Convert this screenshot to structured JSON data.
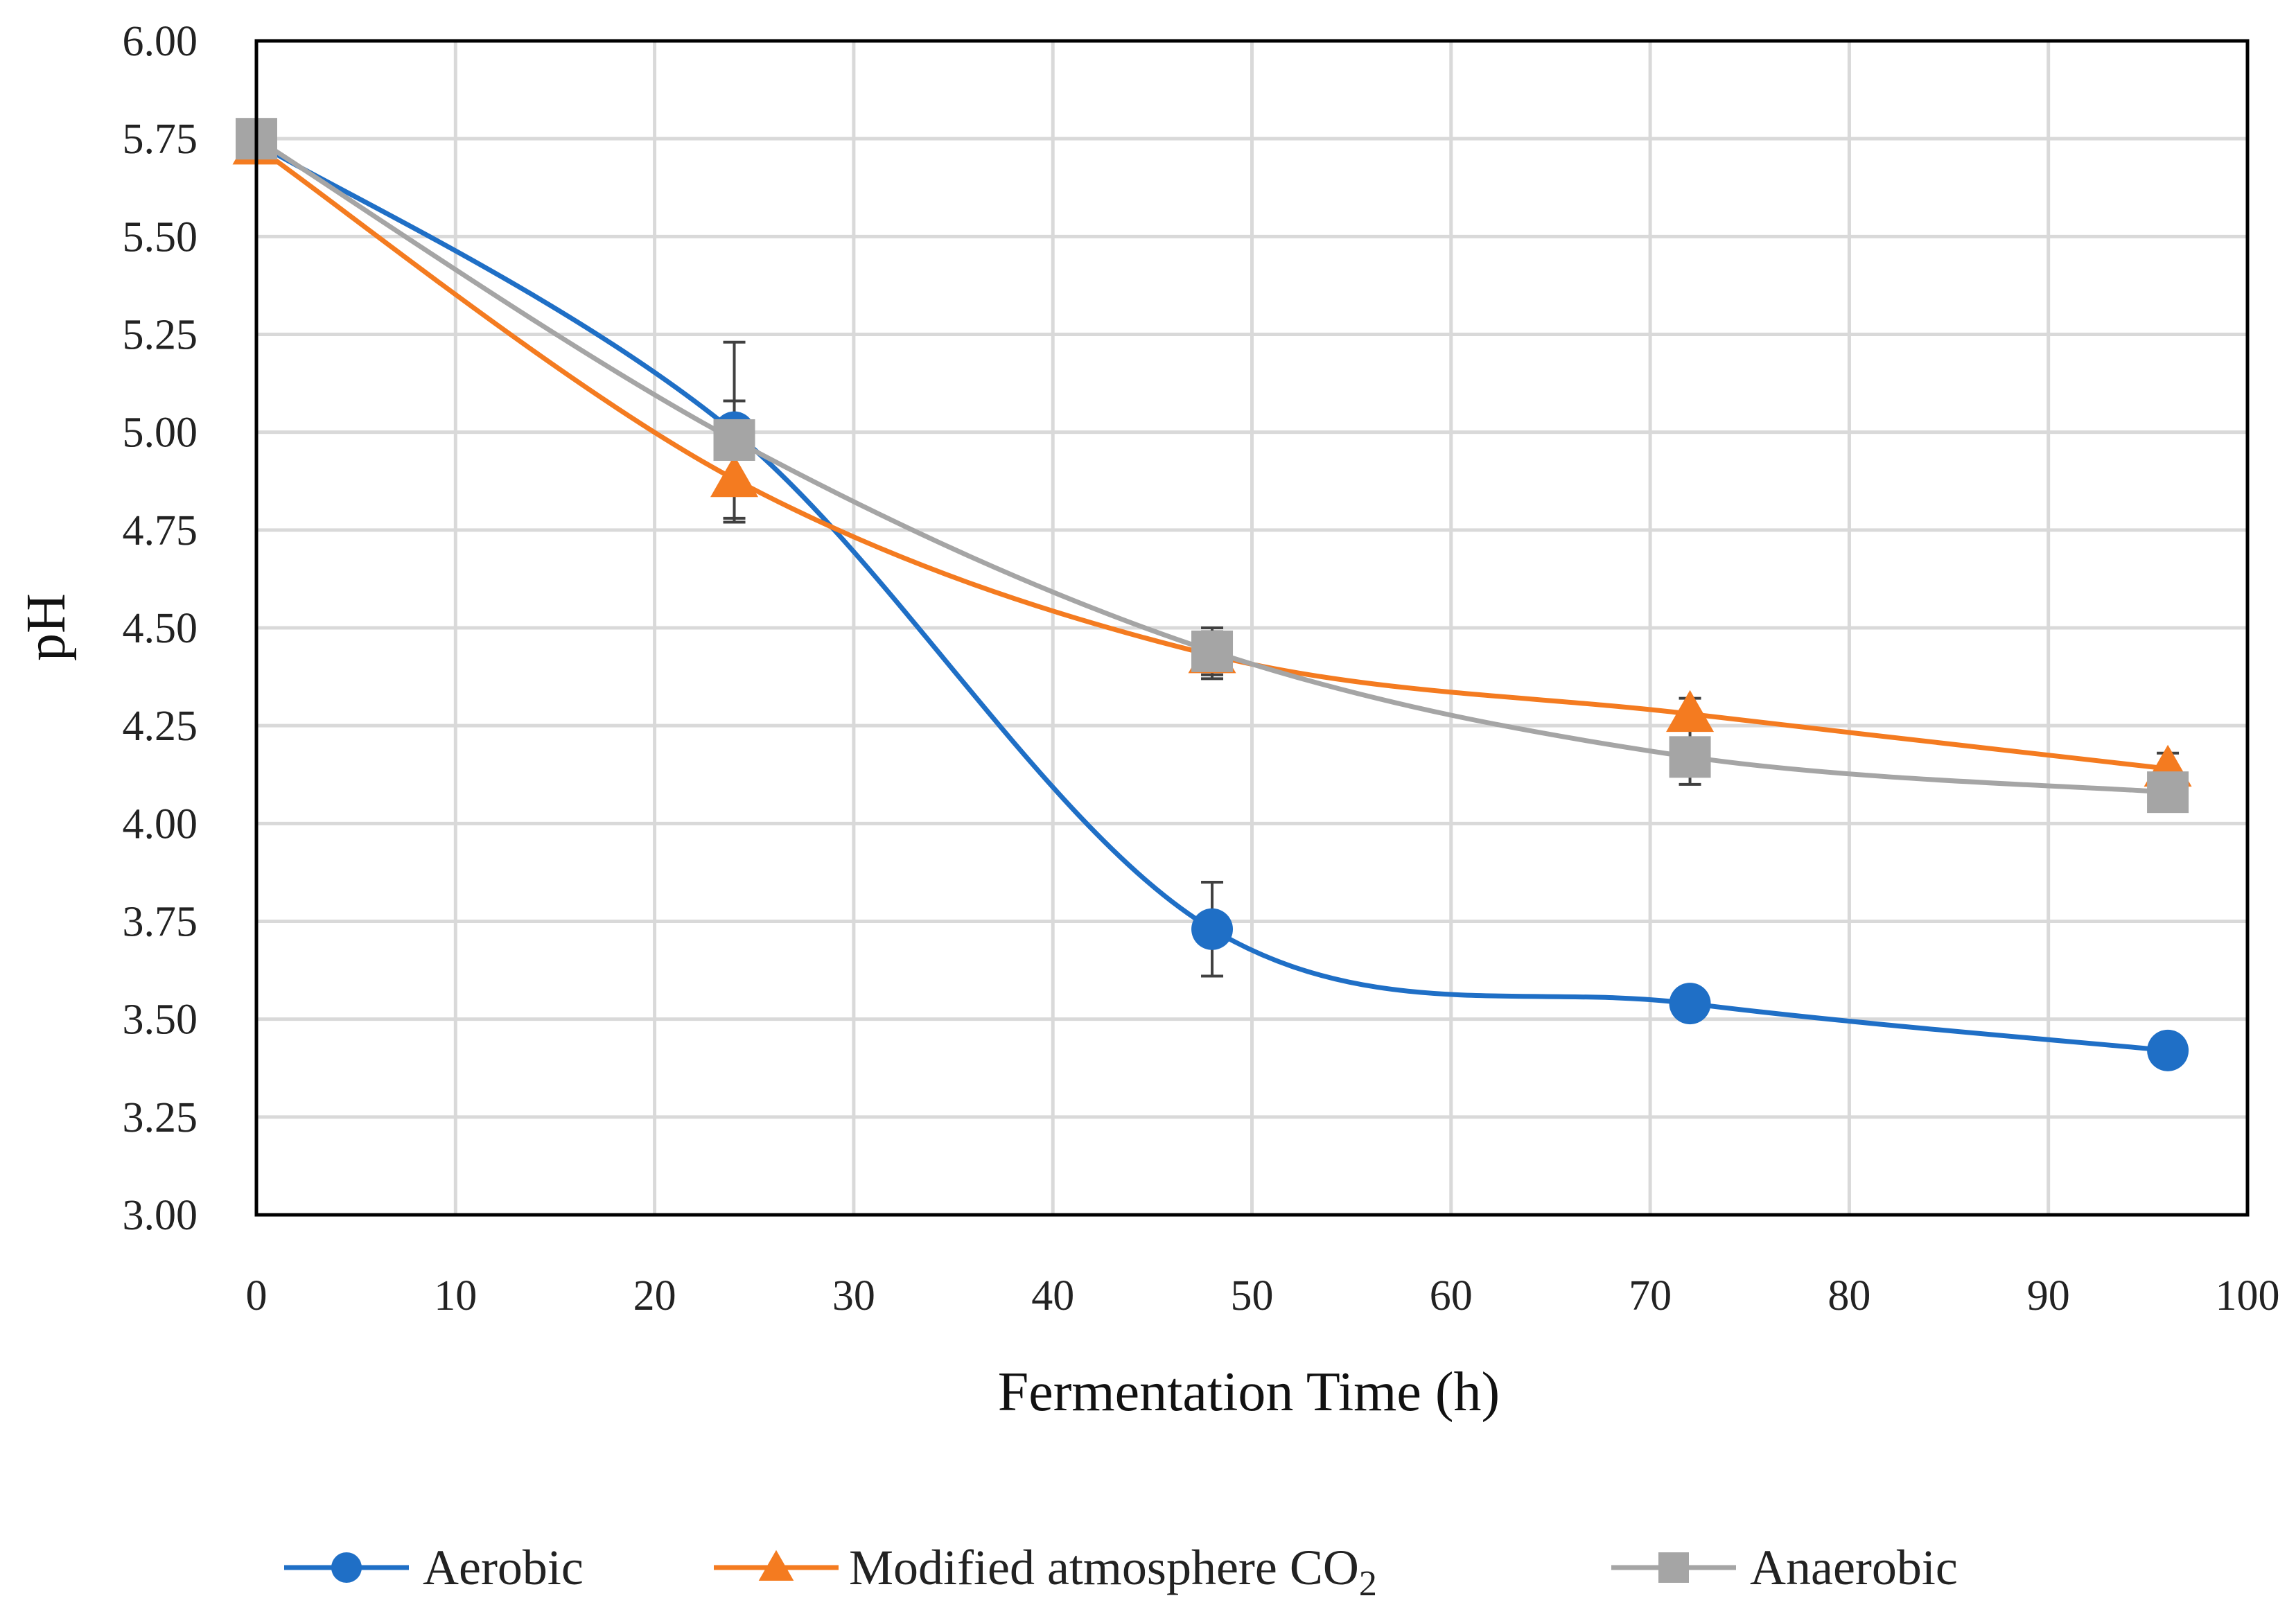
{
  "chart_data": {
    "type": "line",
    "title": "",
    "xlabel": "Fermentation Time (h)",
    "ylabel": "pH",
    "xlim": [
      0,
      100
    ],
    "ylim": [
      3.0,
      6.0
    ],
    "x_ticks": [
      "0",
      "10",
      "20",
      "30",
      "40",
      "50",
      "60",
      "70",
      "80",
      "90",
      "100"
    ],
    "y_ticks": [
      "3.00",
      "3.25",
      "3.50",
      "3.75",
      "4.00",
      "4.25",
      "4.50",
      "4.75",
      "5.00",
      "5.25",
      "5.50",
      "5.75",
      "6.00"
    ],
    "grid": true,
    "smoothed": true,
    "legend_position": "bottom",
    "series": [
      {
        "name": "Aerobic",
        "legend_main": "Aerobic",
        "legend_sub": "",
        "color": "#1f6fc6",
        "marker": "circle",
        "x": [
          0,
          24,
          48,
          72,
          96
        ],
        "y": [
          5.74,
          5.0,
          3.73,
          3.54,
          3.42
        ],
        "error": [
          0.03,
          0.23,
          0.12,
          0.04,
          0.03
        ]
      },
      {
        "name": "Modified atmosphere CO2",
        "legend_main": "Modified atmosphere CO",
        "legend_sub": "2",
        "color": "#f47b20",
        "marker": "triangle",
        "x": [
          0,
          24,
          48,
          72,
          96
        ],
        "y": [
          5.73,
          4.88,
          4.43,
          4.28,
          4.14
        ],
        "error": [
          0.04,
          0.1,
          0.06,
          0.04,
          0.04
        ]
      },
      {
        "name": "Anaerobic",
        "legend_main": "Anaerobic",
        "legend_sub": "",
        "color": "#a5a5a5",
        "marker": "square",
        "x": [
          0,
          24,
          48,
          72,
          96
        ],
        "y": [
          5.75,
          4.98,
          4.44,
          4.17,
          4.08
        ],
        "error": [
          0.03,
          0.1,
          0.06,
          0.07,
          0.03
        ]
      }
    ]
  }
}
